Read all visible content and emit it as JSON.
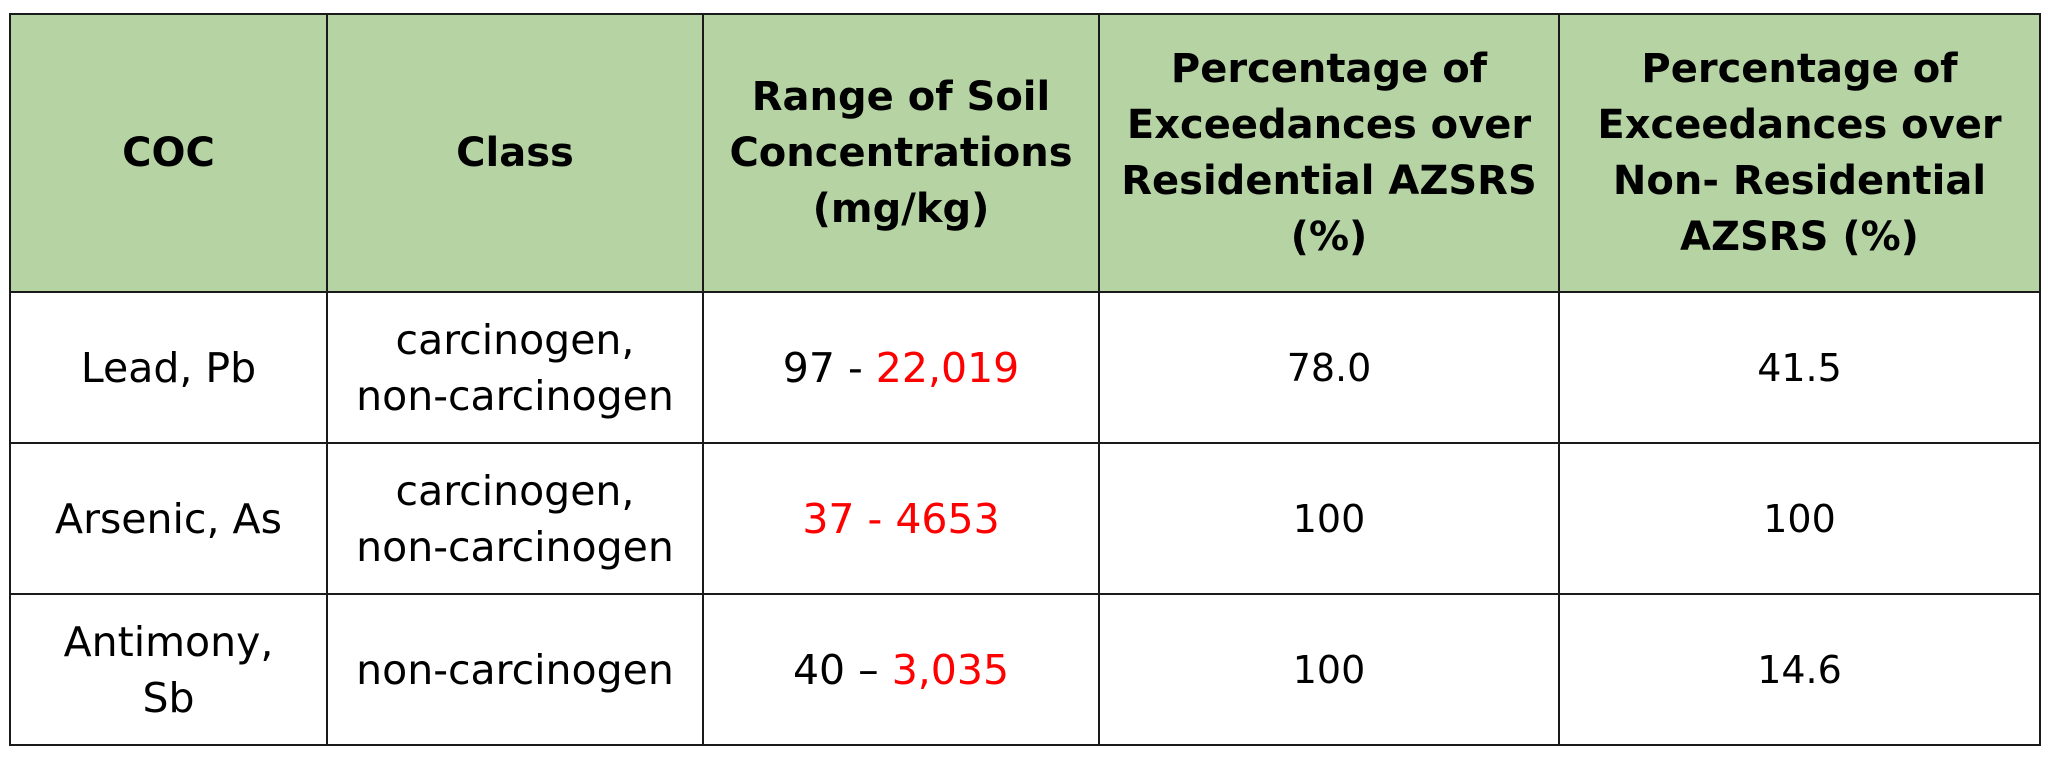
{
  "table": {
    "headers": [
      "COC",
      "Class",
      "Range of Soil\nConcentrations\n(mg/kg)",
      "Percentage of\nExceedances over\nResidential AZSRS\n(%)",
      "Percentage of\nExceedances over\nNon- Residential\nAZSRS (%)"
    ],
    "rows": [
      {
        "coc": "Lead, Pb",
        "class": "carcinogen,\nnon-carcinogen",
        "range_black": "97 - ",
        "range_red": "22,019",
        "residential": "78.0",
        "non_residential": "41.5"
      },
      {
        "coc": "Arsenic, As",
        "class": "carcinogen,\nnon-carcinogen",
        "range_black": "",
        "range_red": "37 - 4653",
        "residential": "100",
        "non_residential": "100"
      },
      {
        "coc": "Antimony,\nSb",
        "class": "non-carcinogen",
        "range_black": "40 – ",
        "range_red": "3,035",
        "residential": "100",
        "non_residential": "14.6"
      }
    ]
  },
  "colors": {
    "header_background": "#b6d3a3",
    "highlight_text": "#ff0000",
    "border": "#1a1a1a"
  }
}
